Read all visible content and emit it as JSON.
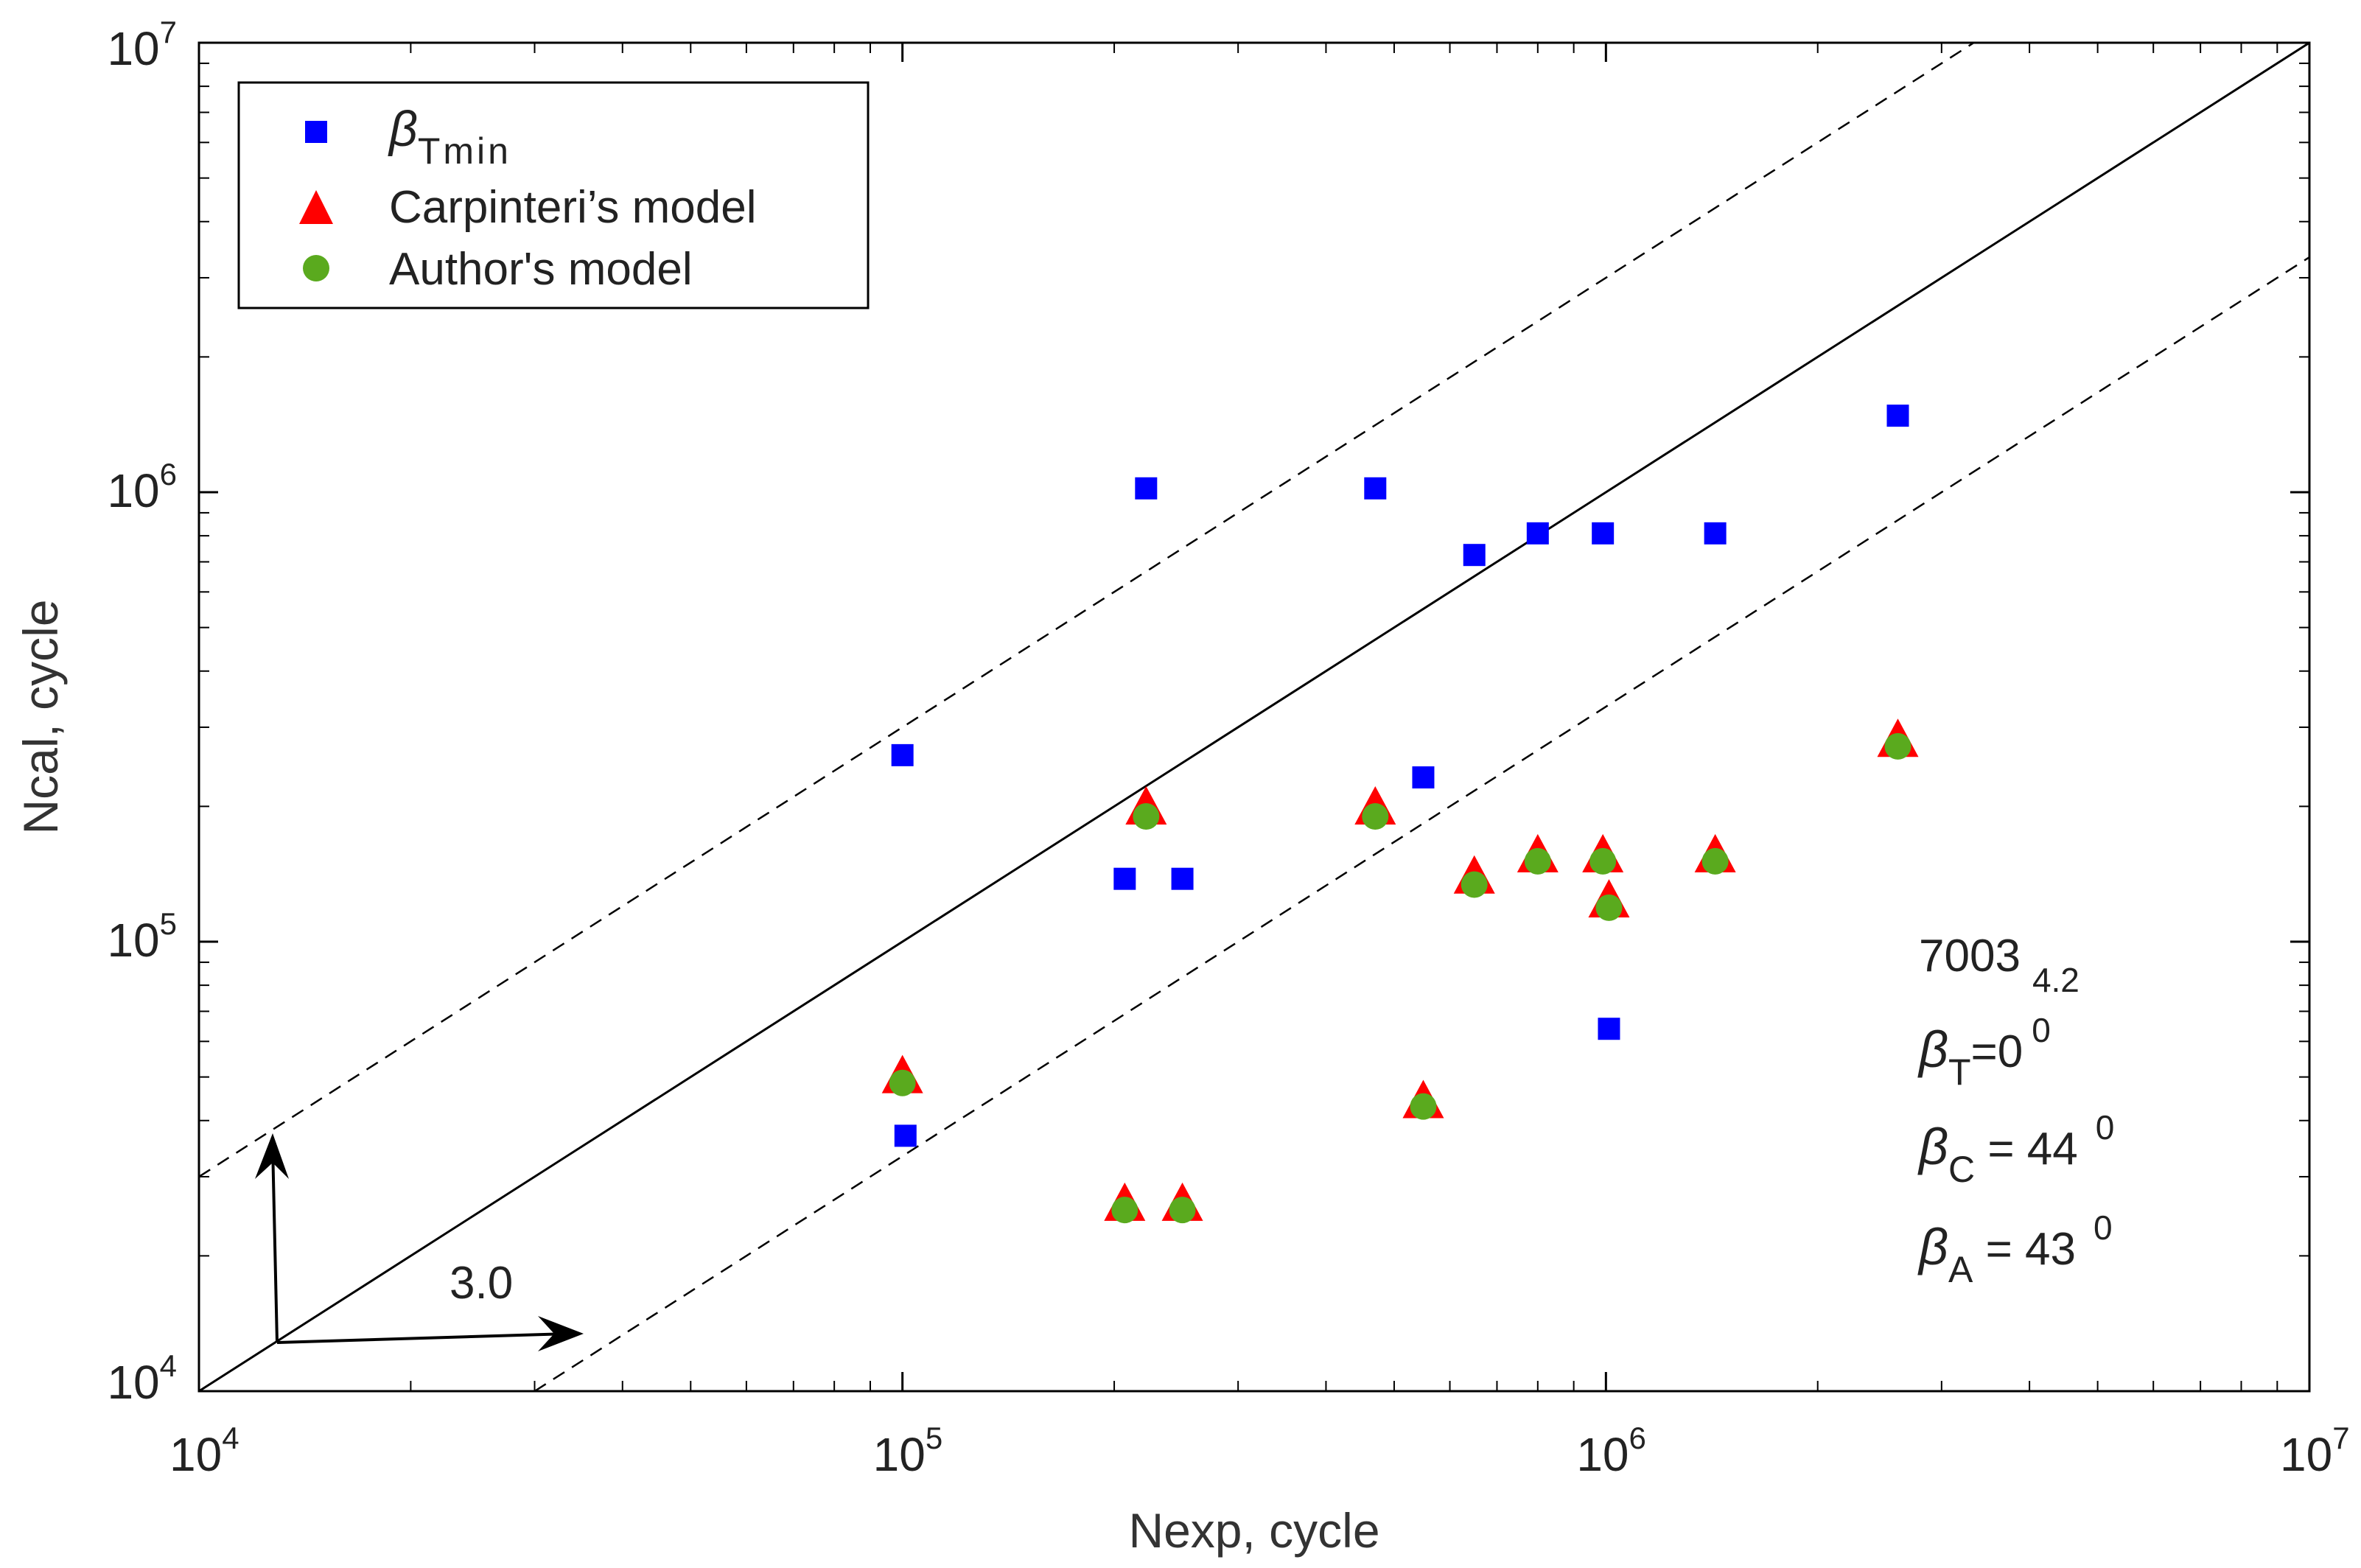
{
  "chart_data": {
    "type": "scatter",
    "xscale": "log",
    "yscale": "log",
    "xlabel": "Nexp, cycle",
    "ylabel": "Ncal, cycle",
    "xlim": [
      10000,
      10000000
    ],
    "ylim": [
      10000,
      10000000
    ],
    "ticks": [
      {
        "base": "10",
        "exp": "4",
        "value": 10000
      },
      {
        "base": "10",
        "exp": "5",
        "value": 100000
      },
      {
        "base": "10",
        "exp": "6",
        "value": 1000000
      },
      {
        "base": "10",
        "exp": "7",
        "value": 10000000
      }
    ],
    "reference_lines": [
      {
        "name": "perfect-agreement",
        "style": "solid",
        "factor": 1
      },
      {
        "name": "upper-scatter-band",
        "style": "dashed",
        "factor": 3
      },
      {
        "name": "lower-scatter-band",
        "style": "dashed",
        "factor": 0.3333
      }
    ],
    "scatter_band_label": "3.0",
    "series": [
      {
        "name": "βTmin",
        "name_main": "β",
        "name_sub": "Tmin",
        "marker": "square",
        "color": "#0000ff",
        "points": [
          [
            100000,
            260000
          ],
          [
            101000,
            37000
          ],
          [
            207000,
            138000
          ],
          [
            222000,
            1020000
          ],
          [
            250000,
            138000
          ],
          [
            470000,
            1020000
          ],
          [
            550000,
            232000
          ],
          [
            650000,
            725000
          ],
          [
            800000,
            810000
          ],
          [
            990000,
            810000
          ],
          [
            1010000,
            64000
          ],
          [
            1430000,
            810000
          ],
          [
            2600000,
            1480000
          ]
        ]
      },
      {
        "name": "Carpinteri’s model",
        "marker": "triangle",
        "color": "#ff0000",
        "points": [
          [
            100000,
            50000
          ],
          [
            207000,
            26000
          ],
          [
            222000,
            198000
          ],
          [
            250000,
            26000
          ],
          [
            470000,
            198000
          ],
          [
            550000,
            44000
          ],
          [
            650000,
            139000
          ],
          [
            800000,
            155000
          ],
          [
            990000,
            155000
          ],
          [
            1010000,
            123000
          ],
          [
            1430000,
            155000
          ],
          [
            2600000,
            280000
          ]
        ]
      },
      {
        "name": "Author's model",
        "marker": "circle",
        "color": "#5aaa1e",
        "points": [
          [
            100000,
            48500
          ],
          [
            207000,
            25300
          ],
          [
            222000,
            190000
          ],
          [
            250000,
            25300
          ],
          [
            470000,
            190000
          ],
          [
            550000,
            43000
          ],
          [
            650000,
            134000
          ],
          [
            800000,
            151000
          ],
          [
            990000,
            151000
          ],
          [
            1010000,
            119000
          ],
          [
            1430000,
            151000
          ],
          [
            2600000,
            272000
          ]
        ]
      }
    ],
    "annotations": {
      "material": "7003",
      "material_sub": "4.2",
      "betaT": {
        "symbol": "β",
        "sub": "T",
        "text": "=0",
        "sup": "0"
      },
      "betaC": {
        "symbol": "β",
        "sub": "C",
        "text": " = 44",
        "sup": "0"
      },
      "betaA": {
        "symbol": "β",
        "sub": "A",
        "text": " = 43",
        "sup": "0"
      }
    },
    "legend_position": "top-left"
  }
}
